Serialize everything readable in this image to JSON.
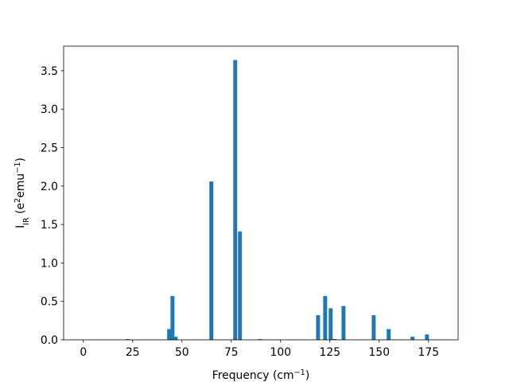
{
  "chart_data": {
    "type": "bar",
    "xlabel": [
      "Frequency (cm",
      "−1",
      ")"
    ],
    "ylabel": [
      "I",
      "IR",
      " (e",
      "2",
      "emu",
      "−1",
      ")"
    ],
    "x": [
      22.6,
      43.5,
      45.2,
      46.8,
      64.9,
      77.0,
      79.4,
      89.5,
      119.0,
      122.6,
      125.4,
      127.4,
      131.9,
      147.2,
      154.8,
      166.9,
      174.2
    ],
    "values": [
      0.01,
      0.14,
      0.57,
      0.04,
      2.06,
      3.64,
      1.41,
      0.01,
      0.32,
      0.57,
      0.41,
      0.01,
      0.44,
      0.32,
      0.14,
      0.04,
      0.07
    ],
    "color": "#1f77b4",
    "xlim": [
      -10,
      190
    ],
    "xticks": [
      0,
      25,
      50,
      75,
      100,
      125,
      150,
      175
    ],
    "ylim": [
      0,
      3.82
    ],
    "yticks": [
      {
        "value": 0,
        "label": "0.0"
      },
      0.5,
      {
        "value": 1,
        "label": "1.0"
      },
      1.5,
      {
        "value": 2,
        "label": "2.0"
      },
      2.5,
      {
        "value": 3,
        "label": "3.0"
      },
      3.5
    ]
  }
}
